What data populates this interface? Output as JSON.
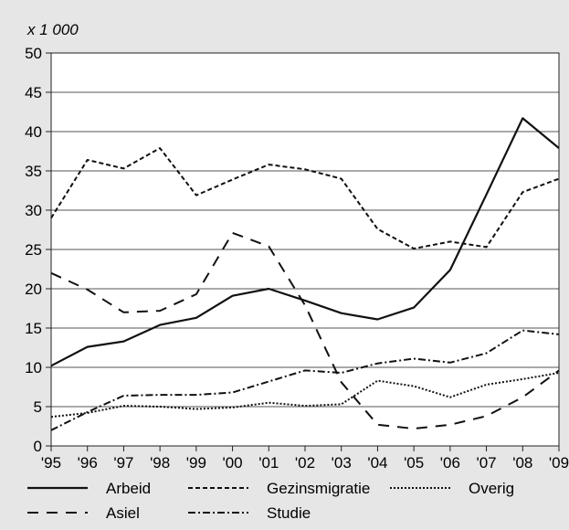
{
  "chart_data": {
    "type": "line",
    "title": "",
    "unit_label": "x 1 000",
    "categories": [
      "'95",
      "'96",
      "'97",
      "'98",
      "'99",
      "'00",
      "'01",
      "'02",
      "'03",
      "'04",
      "'05",
      "'06",
      "'07",
      "'08",
      "'09"
    ],
    "ylim": [
      0,
      50
    ],
    "yticks": [
      "0",
      "5",
      "10",
      "15",
      "20",
      "25",
      "30",
      "35",
      "40",
      "45",
      "50"
    ],
    "grid": true,
    "legend_position": "bottom",
    "series": [
      {
        "name": "Arbeid",
        "dash": "solid",
        "values": [
          10.2,
          12.6,
          13.3,
          15.4,
          16.3,
          19.1,
          20.0,
          18.5,
          16.9,
          16.1,
          17.6,
          22.4,
          32.0,
          41.7,
          37.9
        ]
      },
      {
        "name": "Gezinsmigratie",
        "dash": "dashed-short",
        "values": [
          29.0,
          36.4,
          35.3,
          37.9,
          31.9,
          33.9,
          35.8,
          35.2,
          34.0,
          27.6,
          25.1,
          26.0,
          25.3,
          32.3,
          34.0
        ]
      },
      {
        "name": "Overig",
        "dash": "dotted",
        "values": [
          3.7,
          4.2,
          5.1,
          5.0,
          4.7,
          4.9,
          5.5,
          5.1,
          5.3,
          8.3,
          7.6,
          6.2,
          7.8,
          8.5,
          9.3
        ]
      },
      {
        "name": "Asiel",
        "dash": "dashed-long",
        "values": [
          22.0,
          19.9,
          17.0,
          17.2,
          19.3,
          27.1,
          25.4,
          17.9,
          8.1,
          2.7,
          2.2,
          2.7,
          3.8,
          6.2,
          9.6
        ]
      },
      {
        "name": "Studie",
        "dash": "dash-dot",
        "values": [
          2.0,
          4.3,
          6.4,
          6.5,
          6.5,
          6.8,
          8.2,
          9.6,
          9.3,
          10.5,
          11.1,
          10.6,
          11.8,
          14.7,
          14.2
        ]
      }
    ]
  }
}
